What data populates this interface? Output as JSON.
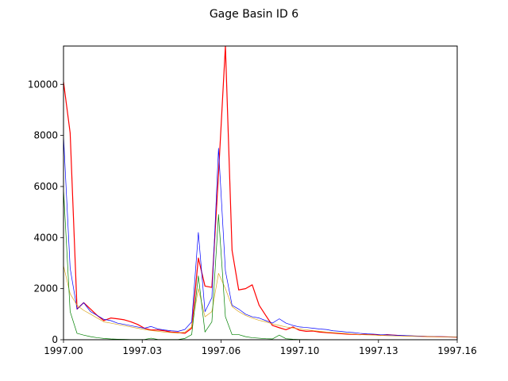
{
  "chart_data": {
    "type": "line",
    "title": "Gage Basin ID 6",
    "xlabel": "",
    "ylabel": "",
    "xlim": [
      1997.0,
      1997.16
    ],
    "ylim": [
      0,
      11500
    ],
    "xticks": [
      1997.0,
      1997.032,
      1997.064,
      1997.096,
      1997.128,
      1997.16
    ],
    "xtick_labels": [
      "1997.00",
      "1997.03",
      "1997.06",
      "1997.10",
      "1997.13",
      "1997.16"
    ],
    "yticks": [
      0,
      2000,
      4000,
      6000,
      8000,
      10000
    ],
    "ytick_labels": [
      "0",
      "2000",
      "4000",
      "6000",
      "8000",
      "10000"
    ],
    "grid": false,
    "legend": "none",
    "series": [
      {
        "color": "#ff0000",
        "points": [
          [
            1997.0,
            10100
          ],
          [
            1997.0027,
            8100
          ],
          [
            1997.0055,
            1200
          ],
          [
            1997.0082,
            1450
          ],
          [
            1997.011,
            1200
          ],
          [
            1997.0137,
            950
          ],
          [
            1997.0164,
            750
          ],
          [
            1997.0192,
            850
          ],
          [
            1997.0219,
            820
          ],
          [
            1997.0247,
            780
          ],
          [
            1997.0274,
            700
          ],
          [
            1997.0301,
            600
          ],
          [
            1997.0329,
            450
          ],
          [
            1997.0356,
            380
          ],
          [
            1997.0384,
            380
          ],
          [
            1997.0411,
            350
          ],
          [
            1997.0438,
            300
          ],
          [
            1997.0466,
            280
          ],
          [
            1997.0493,
            250
          ],
          [
            1997.0521,
            450
          ],
          [
            1997.0548,
            3200
          ],
          [
            1997.0575,
            2100
          ],
          [
            1997.0603,
            2050
          ],
          [
            1997.063,
            6500
          ],
          [
            1997.0658,
            11500
          ],
          [
            1997.0685,
            3500
          ],
          [
            1997.0712,
            1950
          ],
          [
            1997.074,
            2000
          ],
          [
            1997.0767,
            2150
          ],
          [
            1997.0795,
            1350
          ],
          [
            1997.0822,
            950
          ],
          [
            1997.0849,
            560
          ],
          [
            1997.0877,
            470
          ],
          [
            1997.0904,
            390
          ],
          [
            1997.0932,
            500
          ],
          [
            1997.0959,
            370
          ],
          [
            1997.0986,
            330
          ],
          [
            1997.1014,
            340
          ],
          [
            1997.1041,
            300
          ],
          [
            1997.1068,
            280
          ],
          [
            1997.1096,
            260
          ],
          [
            1997.1123,
            240
          ],
          [
            1997.1151,
            220
          ],
          [
            1997.1178,
            210
          ],
          [
            1997.1205,
            200
          ],
          [
            1997.1233,
            220
          ],
          [
            1997.126,
            200
          ],
          [
            1997.1288,
            170
          ],
          [
            1997.1315,
            200
          ],
          [
            1997.1342,
            180
          ],
          [
            1997.137,
            160
          ],
          [
            1997.1397,
            150
          ],
          [
            1997.1425,
            140
          ],
          [
            1997.1452,
            135
          ],
          [
            1997.1479,
            125
          ],
          [
            1997.1507,
            120
          ],
          [
            1997.1534,
            115
          ],
          [
            1997.1562,
            110
          ],
          [
            1997.1589,
            105
          ],
          [
            1997.16,
            100
          ]
        ]
      },
      {
        "color": "#0000ff",
        "points": [
          [
            1997.0,
            8000
          ],
          [
            1997.0027,
            2800
          ],
          [
            1997.0055,
            1200
          ],
          [
            1997.0082,
            1450
          ],
          [
            1997.011,
            1100
          ],
          [
            1997.0137,
            950
          ],
          [
            1997.0164,
            800
          ],
          [
            1997.0192,
            750
          ],
          [
            1997.0219,
            650
          ],
          [
            1997.0247,
            600
          ],
          [
            1997.0274,
            550
          ],
          [
            1997.0301,
            500
          ],
          [
            1997.0329,
            450
          ],
          [
            1997.0356,
            520
          ],
          [
            1997.0384,
            420
          ],
          [
            1997.0411,
            380
          ],
          [
            1997.0438,
            350
          ],
          [
            1997.0466,
            330
          ],
          [
            1997.0493,
            400
          ],
          [
            1997.0521,
            700
          ],
          [
            1997.0548,
            4200
          ],
          [
            1997.0575,
            1100
          ],
          [
            1997.0603,
            1650
          ],
          [
            1997.063,
            7500
          ],
          [
            1997.0658,
            2700
          ],
          [
            1997.0685,
            1350
          ],
          [
            1997.0712,
            1200
          ],
          [
            1997.074,
            1000
          ],
          [
            1997.0767,
            900
          ],
          [
            1997.0795,
            850
          ],
          [
            1997.0822,
            750
          ],
          [
            1997.0849,
            650
          ],
          [
            1997.0877,
            820
          ],
          [
            1997.0904,
            650
          ],
          [
            1997.0932,
            560
          ],
          [
            1997.0959,
            500
          ],
          [
            1997.0986,
            480
          ],
          [
            1997.1014,
            450
          ],
          [
            1997.1041,
            420
          ],
          [
            1997.1068,
            400
          ],
          [
            1997.1096,
            350
          ],
          [
            1997.1123,
            330
          ],
          [
            1997.1151,
            300
          ],
          [
            1997.1178,
            280
          ],
          [
            1997.1205,
            250
          ],
          [
            1997.1233,
            230
          ],
          [
            1997.126,
            220
          ],
          [
            1997.1288,
            200
          ],
          [
            1997.1315,
            190
          ],
          [
            1997.1342,
            180
          ],
          [
            1997.137,
            170
          ],
          [
            1997.1397,
            160
          ],
          [
            1997.1425,
            150
          ],
          [
            1997.1452,
            140
          ],
          [
            1997.1479,
            130
          ],
          [
            1997.1507,
            125
          ],
          [
            1997.1534,
            120
          ],
          [
            1997.1562,
            115
          ],
          [
            1997.1589,
            110
          ],
          [
            1997.16,
            105
          ]
        ]
      },
      {
        "color": "#daa520",
        "points": [
          [
            1997.0,
            2900
          ],
          [
            1997.0027,
            1800
          ],
          [
            1997.0055,
            1350
          ],
          [
            1997.0082,
            1150
          ],
          [
            1997.011,
            1000
          ],
          [
            1997.0137,
            850
          ],
          [
            1997.0164,
            700
          ],
          [
            1997.0192,
            650
          ],
          [
            1997.0219,
            600
          ],
          [
            1997.0247,
            550
          ],
          [
            1997.0274,
            500
          ],
          [
            1997.0301,
            450
          ],
          [
            1997.0329,
            400
          ],
          [
            1997.0356,
            360
          ],
          [
            1997.0384,
            330
          ],
          [
            1997.0411,
            300
          ],
          [
            1997.0438,
            280
          ],
          [
            1997.0466,
            260
          ],
          [
            1997.0493,
            300
          ],
          [
            1997.0521,
            500
          ],
          [
            1997.0548,
            2000
          ],
          [
            1997.0575,
            900
          ],
          [
            1997.0603,
            1100
          ],
          [
            1997.063,
            2600
          ],
          [
            1997.0658,
            2000
          ],
          [
            1997.0685,
            1300
          ],
          [
            1997.0712,
            1100
          ],
          [
            1997.074,
            950
          ],
          [
            1997.0767,
            850
          ],
          [
            1997.0795,
            760
          ],
          [
            1997.0822,
            700
          ],
          [
            1997.0849,
            620
          ],
          [
            1997.0877,
            560
          ],
          [
            1997.0904,
            500
          ],
          [
            1997.0932,
            460
          ],
          [
            1997.0959,
            420
          ],
          [
            1997.0986,
            390
          ],
          [
            1997.1014,
            360
          ],
          [
            1997.1041,
            330
          ],
          [
            1997.1068,
            300
          ],
          [
            1997.1096,
            280
          ],
          [
            1997.1123,
            260
          ],
          [
            1997.1151,
            240
          ],
          [
            1997.1178,
            220
          ],
          [
            1997.1205,
            200
          ],
          [
            1997.1233,
            190
          ],
          [
            1997.126,
            180
          ],
          [
            1997.1288,
            170
          ],
          [
            1997.1315,
            160
          ],
          [
            1997.1342,
            150
          ],
          [
            1997.137,
            145
          ],
          [
            1997.1397,
            140
          ],
          [
            1997.1425,
            135
          ],
          [
            1997.1452,
            130
          ],
          [
            1997.1479,
            125
          ],
          [
            1997.1507,
            120
          ],
          [
            1997.1534,
            115
          ],
          [
            1997.1562,
            110
          ],
          [
            1997.1589,
            105
          ],
          [
            1997.16,
            100
          ]
        ]
      },
      {
        "color": "#008000",
        "points": [
          [
            1997.0,
            5900
          ],
          [
            1997.0027,
            1100
          ],
          [
            1997.0055,
            250
          ],
          [
            1997.0082,
            180
          ],
          [
            1997.011,
            120
          ],
          [
            1997.0137,
            80
          ],
          [
            1997.0164,
            50
          ],
          [
            1997.0192,
            30
          ],
          [
            1997.0219,
            20
          ],
          [
            1997.0247,
            15
          ],
          [
            1997.0274,
            10
          ],
          [
            1997.0301,
            10
          ],
          [
            1997.0329,
            10
          ],
          [
            1997.0356,
            60
          ],
          [
            1997.0384,
            10
          ],
          [
            1997.0411,
            10
          ],
          [
            1997.0438,
            10
          ],
          [
            1997.0466,
            10
          ],
          [
            1997.0493,
            50
          ],
          [
            1997.0521,
            200
          ],
          [
            1997.0548,
            2500
          ],
          [
            1997.0575,
            300
          ],
          [
            1997.0603,
            700
          ],
          [
            1997.063,
            4900
          ],
          [
            1997.0658,
            900
          ],
          [
            1997.0685,
            200
          ],
          [
            1997.0712,
            200
          ],
          [
            1997.074,
            120
          ],
          [
            1997.0767,
            80
          ],
          [
            1997.0795,
            60
          ],
          [
            1997.0822,
            40
          ],
          [
            1997.0849,
            30
          ],
          [
            1997.0877,
            180
          ],
          [
            1997.0904,
            40
          ],
          [
            1997.0932,
            20
          ],
          [
            1997.0959,
            10
          ],
          [
            1997.0986,
            10
          ],
          [
            1997.1014,
            5
          ],
          [
            1997.1041,
            5
          ],
          [
            1997.1068,
            5
          ],
          [
            1997.1096,
            5
          ],
          [
            1997.1123,
            5
          ],
          [
            1997.1151,
            5
          ],
          [
            1997.1178,
            5
          ],
          [
            1997.1205,
            5
          ],
          [
            1997.1233,
            5
          ],
          [
            1997.126,
            5
          ],
          [
            1997.1288,
            5
          ],
          [
            1997.1315,
            5
          ],
          [
            1997.1342,
            5
          ],
          [
            1997.137,
            5
          ],
          [
            1997.1397,
            5
          ],
          [
            1997.1425,
            5
          ],
          [
            1997.1452,
            5
          ],
          [
            1997.1479,
            5
          ],
          [
            1997.1507,
            5
          ],
          [
            1997.1534,
            5
          ],
          [
            1997.1562,
            5
          ],
          [
            1997.1589,
            5
          ],
          [
            1997.16,
            5
          ]
        ]
      }
    ]
  }
}
